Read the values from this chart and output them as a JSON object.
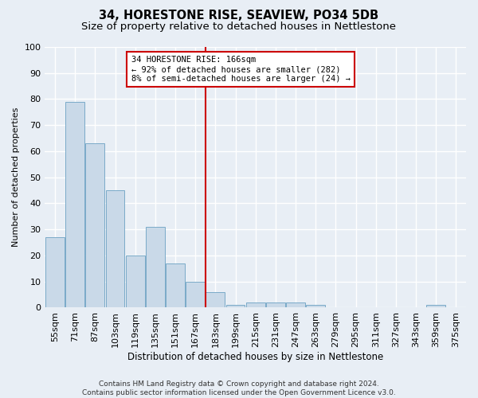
{
  "title1": "34, HORESTONE RISE, SEAVIEW, PO34 5DB",
  "title2": "Size of property relative to detached houses in Nettlestone",
  "xlabel": "Distribution of detached houses by size in Nettlestone",
  "ylabel": "Number of detached properties",
  "categories": [
    "55sqm",
    "71sqm",
    "87sqm",
    "103sqm",
    "119sqm",
    "135sqm",
    "151sqm",
    "167sqm",
    "183sqm",
    "199sqm",
    "215sqm",
    "231sqm",
    "247sqm",
    "263sqm",
    "279sqm",
    "295sqm",
    "311sqm",
    "327sqm",
    "343sqm",
    "359sqm",
    "375sqm"
  ],
  "values": [
    27,
    79,
    63,
    45,
    20,
    31,
    17,
    10,
    6,
    1,
    2,
    2,
    2,
    1,
    0,
    0,
    0,
    0,
    0,
    1,
    0
  ],
  "bar_color": "#c9d9e8",
  "bar_edge_color": "#7aaac8",
  "background_color": "#e8eef5",
  "grid_color": "#ffffff",
  "red_line_index": 7,
  "annotation_text": "34 HORESTONE RISE: 166sqm\n← 92% of detached houses are smaller (282)\n8% of semi-detached houses are larger (24) →",
  "annotation_box_color": "#ffffff",
  "annotation_box_edge_color": "#cc0000",
  "footer_text": "Contains HM Land Registry data © Crown copyright and database right 2024.\nContains public sector information licensed under the Open Government Licence v3.0.",
  "ylim": [
    0,
    100
  ],
  "title1_fontsize": 10.5,
  "title2_fontsize": 9.5,
  "xlabel_fontsize": 8.5,
  "ylabel_fontsize": 8,
  "tick_fontsize": 8,
  "annot_fontsize": 7.5,
  "footer_fontsize": 6.5
}
